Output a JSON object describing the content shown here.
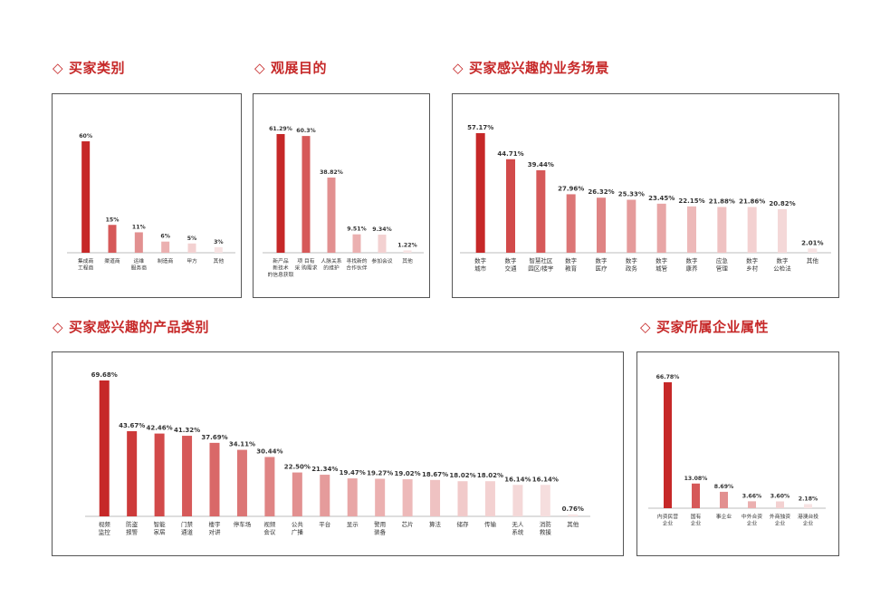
{
  "colors": {
    "title": "#c62828",
    "bar_palette": [
      "#c62828",
      "#cd3a3a",
      "#d24a4a",
      "#d65959",
      "#d96868",
      "#dc7676",
      "#df8484",
      "#e29090",
      "#e59b9b",
      "#e8a6a6",
      "#ebb0b0",
      "#edb9b9",
      "#efc2c2",
      "#f1caca",
      "#f3d1d1",
      "#f4d8d8",
      "#f6dede",
      "#f7e3e3"
    ]
  },
  "chart_data": [
    {
      "id": "buyer_category",
      "type": "bar",
      "title": "买家类别",
      "categories": [
        [
          "集成商",
          "工程商"
        ],
        [
          "渠道商"
        ],
        [
          "运维",
          "服务商"
        ],
        [
          "制造商"
        ],
        [
          "甲方"
        ],
        [
          "其他"
        ]
      ],
      "values": [
        60,
        15,
        11,
        6,
        5,
        3
      ],
      "value_labels": [
        "60%",
        "15%",
        "11%",
        "6%",
        "5%",
        "3%"
      ],
      "ylim": [
        0,
        60
      ]
    },
    {
      "id": "visit_purpose",
      "type": "bar",
      "title": "观展目的",
      "categories": [
        [
          "新产品",
          "新技术",
          "的信息获取"
        ],
        [
          "项 目有",
          "采 购需求"
        ],
        [
          "人脉关系",
          "的维护"
        ],
        [
          "寻找新的",
          "合作伙伴"
        ],
        [
          "参加会议"
        ],
        [
          "其他"
        ]
      ],
      "values": [
        61.29,
        60.3,
        38.82,
        9.51,
        9.34,
        1.22
      ],
      "value_labels": [
        "61.29%",
        "60.3%",
        "38.82%",
        "9.51%",
        "9.34%",
        "1.22%"
      ],
      "ylim": [
        0,
        61.29
      ]
    },
    {
      "id": "business_scenarios",
      "type": "bar",
      "title": "买家感兴趣的业务场景",
      "categories": [
        [
          "数字",
          "城市"
        ],
        [
          "数字",
          "交通"
        ],
        [
          "智慧社区",
          "园区/楼宇"
        ],
        [
          "数字",
          "教育"
        ],
        [
          "数字",
          "医疗"
        ],
        [
          "数字",
          "政务"
        ],
        [
          "数字",
          "城管"
        ],
        [
          "数字",
          "康养"
        ],
        [
          "应急",
          "管理"
        ],
        [
          "数字",
          "乡村"
        ],
        [
          "数字",
          "公检法"
        ],
        [
          "其他"
        ]
      ],
      "values": [
        57.17,
        44.71,
        39.44,
        27.96,
        26.32,
        25.33,
        23.45,
        22.15,
        21.88,
        21.86,
        20.82,
        2.01
      ],
      "value_labels": [
        "57.17%",
        "44.71%",
        "39.44%",
        "27.96%",
        "26.32%",
        "25.33%",
        "23.45%",
        "22.15%",
        "21.88%",
        "21.86%",
        "20.82%",
        "2.01%"
      ],
      "ylim": [
        0,
        57.17
      ]
    },
    {
      "id": "product_categories",
      "type": "bar",
      "title": "买家感兴趣的产品类别",
      "categories": [
        [
          "视频",
          "监控"
        ],
        [
          "防盗",
          "报警"
        ],
        [
          "智能",
          "家居"
        ],
        [
          "门禁",
          "通道"
        ],
        [
          "楼宇",
          "对讲"
        ],
        [
          "停车场"
        ],
        [
          "视频",
          "会议"
        ],
        [
          "公共",
          "广播"
        ],
        [
          "平台"
        ],
        [
          "显示"
        ],
        [
          "警用",
          "装备"
        ],
        [
          "芯片"
        ],
        [
          "算法"
        ],
        [
          "储存"
        ],
        [
          "传输"
        ],
        [
          "无人",
          "系统"
        ],
        [
          "消防",
          "救援"
        ],
        [
          "其他"
        ]
      ],
      "values": [
        69.68,
        43.67,
        42.46,
        41.32,
        37.69,
        34.11,
        30.44,
        22.5,
        21.34,
        19.47,
        19.27,
        19.02,
        18.67,
        18.02,
        18.02,
        16.14,
        16.14,
        0.76
      ],
      "value_labels": [
        "69.68%",
        "43.67%",
        "42.46%",
        "41.32%",
        "37.69%",
        "34.11%",
        "30.44%",
        "22.50%",
        "21.34%",
        "19.47%",
        "19.27%",
        "19.02%",
        "18.67%",
        "18.02%",
        "18.02%",
        "16.14%",
        "16.14%",
        "0.76%"
      ],
      "ylim": [
        0,
        69.68
      ]
    },
    {
      "id": "enterprise_attribute",
      "type": "bar",
      "title": "买家所属企业属性",
      "categories": [
        [
          "内资民营",
          "企业"
        ],
        [
          "国有",
          "企业"
        ],
        [
          "事企业"
        ],
        [
          "中外合资",
          "企业"
        ],
        [
          "外商独资",
          "企业"
        ],
        [
          "港澳台投",
          "企业"
        ]
      ],
      "values": [
        66.78,
        13.08,
        8.69,
        3.66,
        3.6,
        2.18
      ],
      "value_labels": [
        "66.78%",
        "13.08%",
        "8.69%",
        "3.66%",
        "3.60%",
        "2.18%"
      ],
      "ylim": [
        0,
        66.78
      ]
    }
  ]
}
